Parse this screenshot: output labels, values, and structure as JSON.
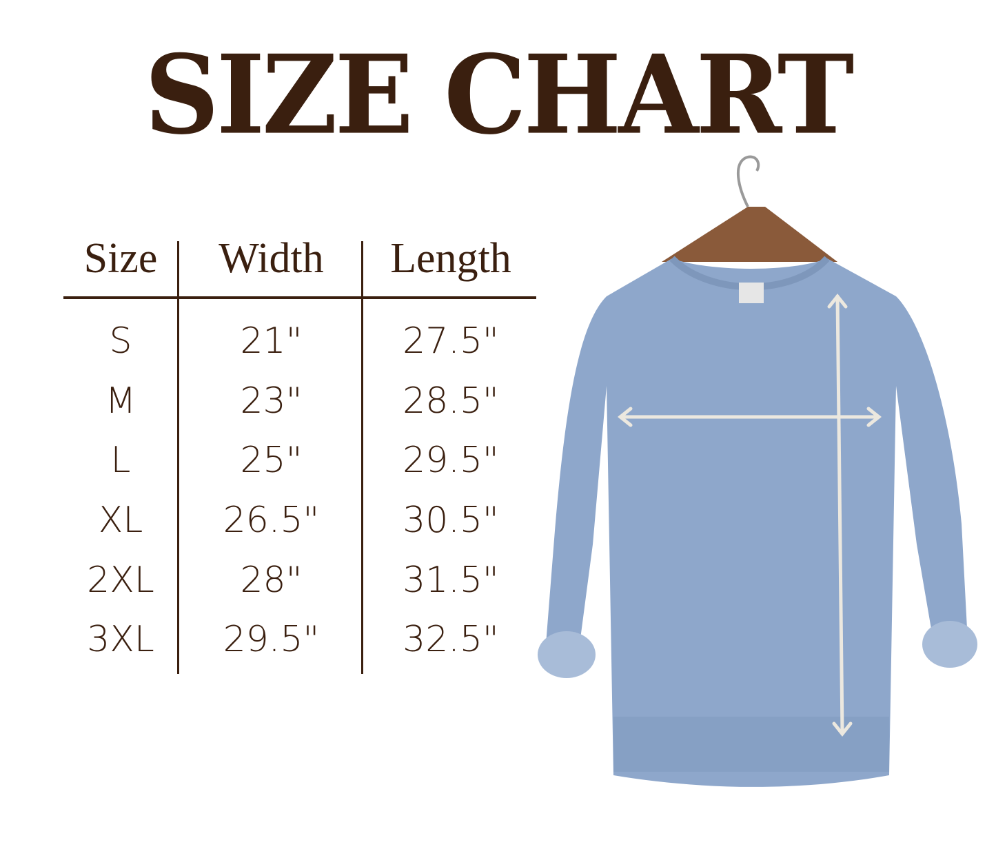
{
  "title": "SIZE CHART",
  "table": {
    "headers": [
      "Size",
      "Width",
      "Length"
    ],
    "rows": [
      [
        "S",
        "21\"",
        "27.5\""
      ],
      [
        "M",
        "23\"",
        "28.5\""
      ],
      [
        "L",
        "25\"",
        "29.5\""
      ],
      [
        "XL",
        "26.5\"",
        "30.5\""
      ],
      [
        "2XL",
        "28\"",
        "31.5\""
      ],
      [
        "3XL",
        "29.5\"",
        "32.5\""
      ]
    ]
  },
  "colors": {
    "text": "#3a1f0f",
    "sweatshirt": "#8ea7cb",
    "arrows": "#ece8df",
    "hanger": "#8a5a3a"
  }
}
